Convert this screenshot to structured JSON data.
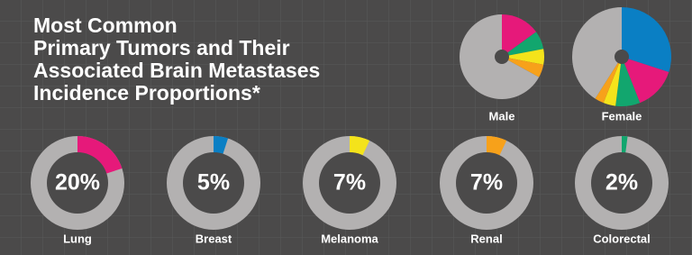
{
  "title_lines": [
    "Most Common",
    "Primary Tumors and Their",
    "Associated Brain Metastases",
    "Incidence Proportions*"
  ],
  "chart_data": [
    {
      "type": "pie",
      "label": "Male",
      "values": [
        15,
        7,
        6,
        5,
        67
      ],
      "colors": [
        "#e6197a",
        "#12a66e",
        "#f4e31b",
        "#f7a11a",
        "#b3b1b1"
      ]
    },
    {
      "type": "pie",
      "label": "Female",
      "values": [
        30,
        14,
        8,
        4,
        3,
        41
      ],
      "colors": [
        "#0a7fc4",
        "#e6197a",
        "#12a66e",
        "#f4e31b",
        "#f7a11a",
        "#b3b1b1"
      ]
    },
    {
      "type": "donut",
      "label": "Lung",
      "values": [
        20
      ],
      "value_labels": [
        "20%"
      ],
      "color": "#e6197a"
    },
    {
      "type": "donut",
      "label": "Breast",
      "values": [
        5
      ],
      "value_labels": [
        "5%"
      ],
      "color": "#0a7fc4"
    },
    {
      "type": "donut",
      "label": "Melanoma",
      "values": [
        7
      ],
      "value_labels": [
        "7%"
      ],
      "color": "#f4e31b"
    },
    {
      "type": "donut",
      "label": "Renal",
      "values": [
        7
      ],
      "value_labels": [
        "7%"
      ],
      "color": "#f7a11a"
    },
    {
      "type": "donut",
      "label": "Colorectal",
      "values": [
        2
      ],
      "value_labels": [
        "2%"
      ],
      "color": "#12a66e"
    }
  ]
}
